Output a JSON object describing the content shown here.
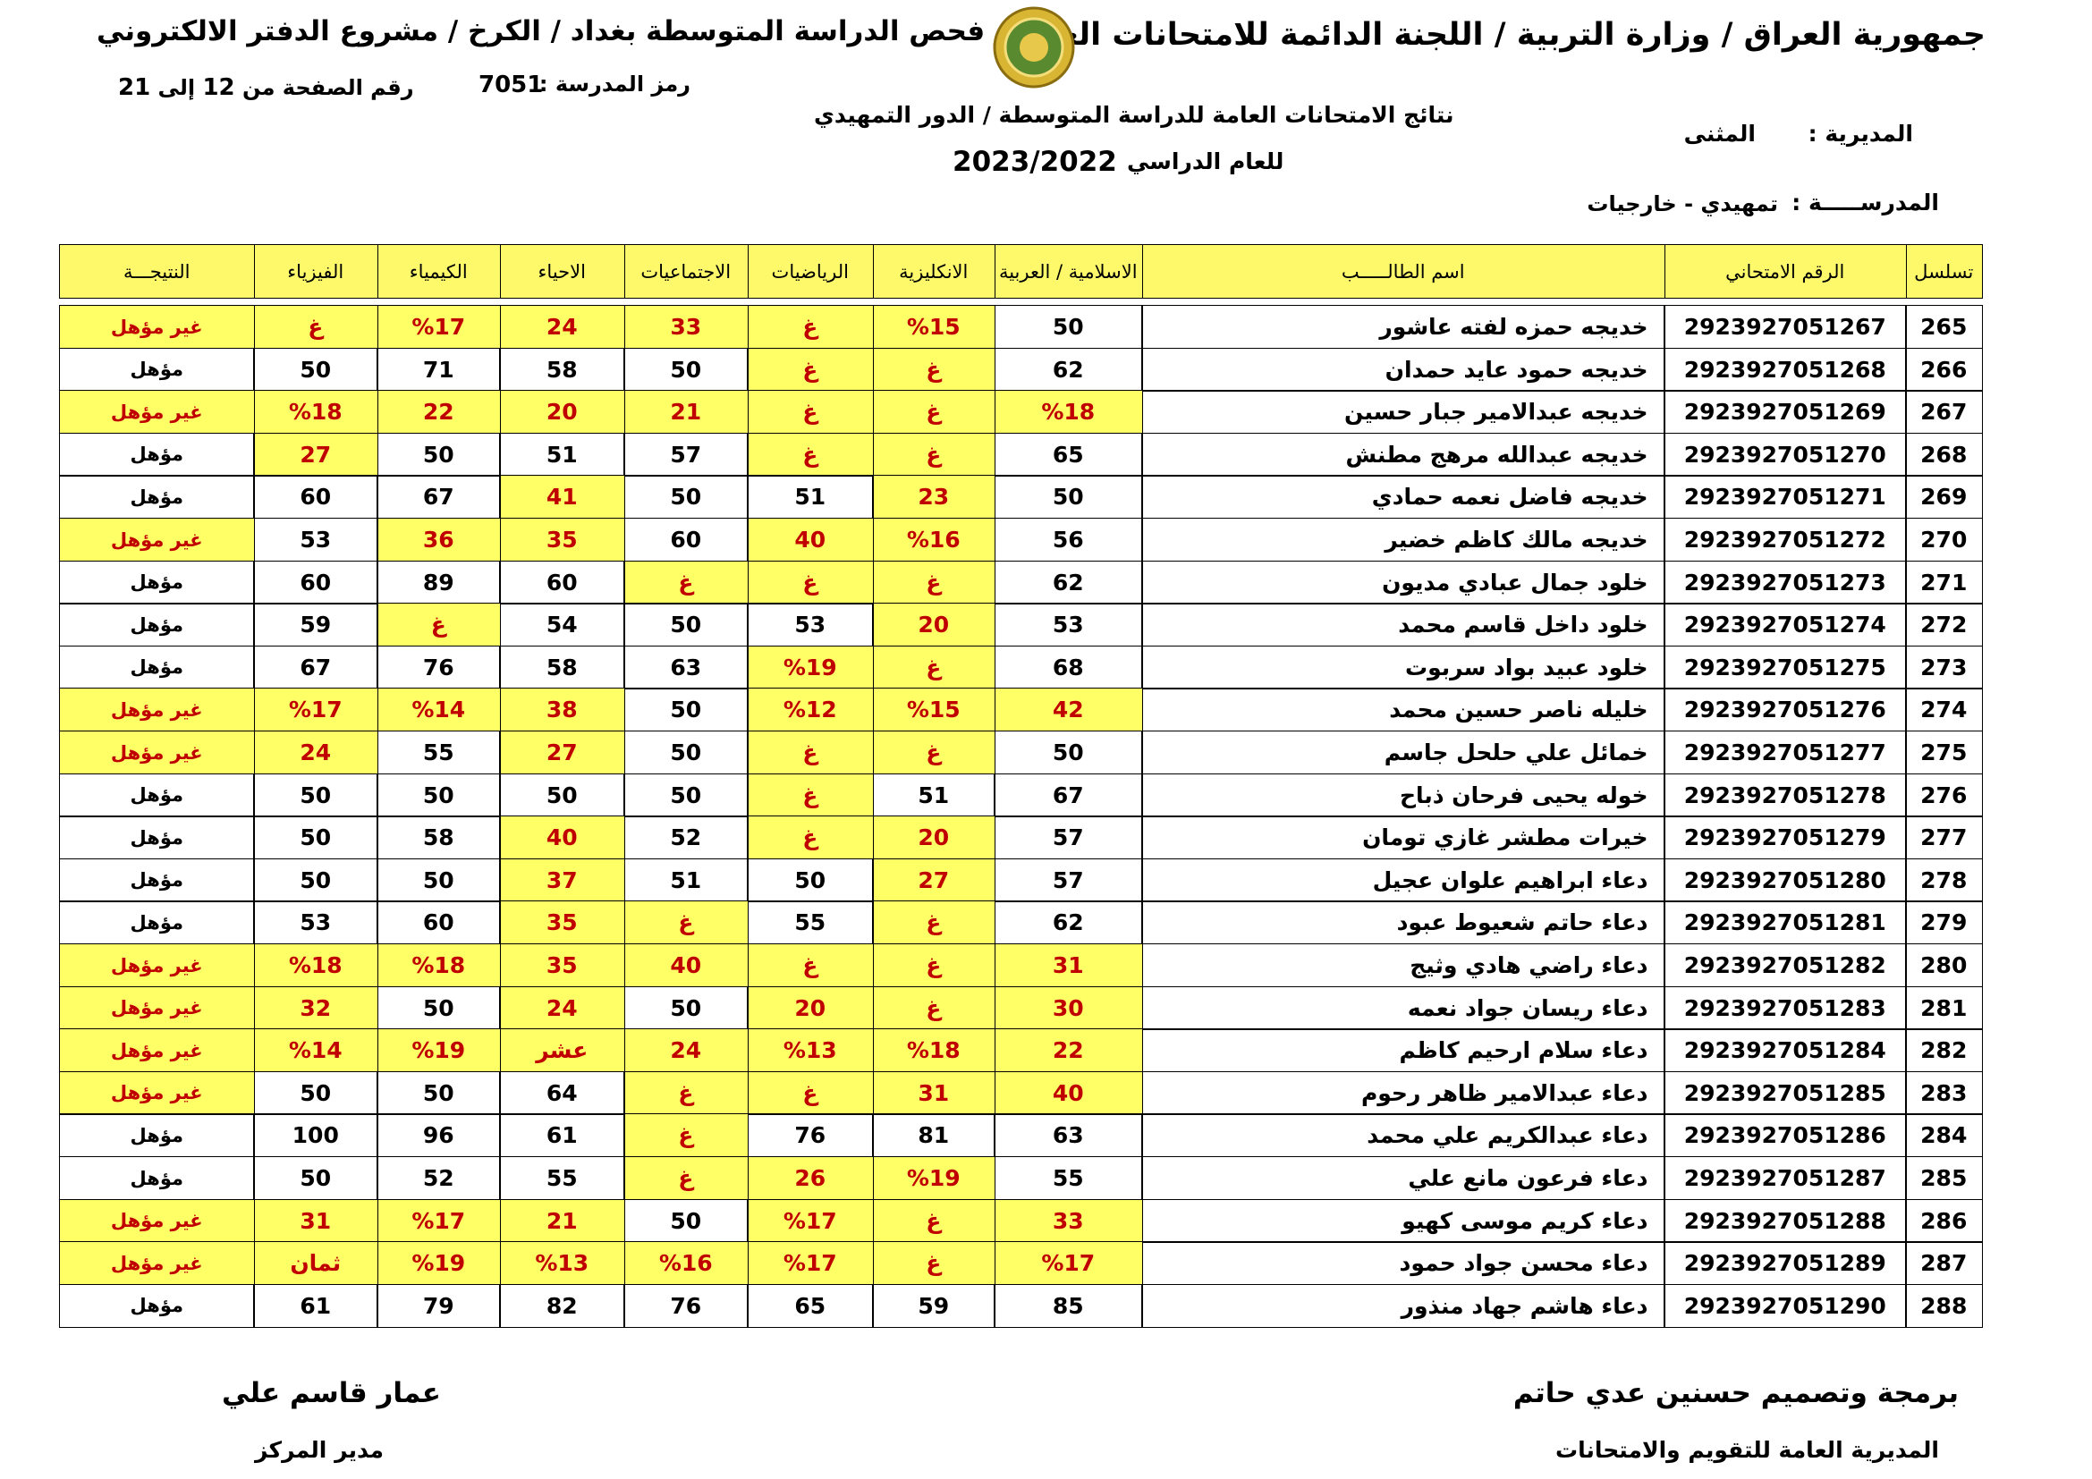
{
  "header": {
    "ministry": "جمهورية العراق / وزارة التربية / اللجنة الدائمة للامتحانات العامة",
    "center": "مركز فحص الدراسة المتوسطة بغداد / الكرخ / مشروع الدفتر الالكتروني",
    "school_code_label": "رمز المدرسة :",
    "school_code": "7051",
    "page_label": "رقم الصفحة من",
    "page_current": "12",
    "page_to": "إلى",
    "page_total": "21",
    "results_title": "نتائج الامتحانات العامة للدراسة المتوسطة / الدور التمهيدي",
    "year_label": "للعام الدراسي",
    "year": "2023/2022",
    "directorate_label": "المديرية :",
    "directorate": "المثنى",
    "school_label": "المدرســـــة :",
    "school": "تمهيدي - خارجيات"
  },
  "table": {
    "columns": [
      "تسلسل",
      "الرقم الامتحاني",
      "اسم الطالـــــب",
      "الاسلامية / العربية",
      "الانكليزية",
      "الرياضيات",
      "الاجتماعيات",
      "الاحياء",
      "الكيمياء",
      "الفيزياء",
      "النتيجـــة"
    ],
    "rows": [
      [
        "265",
        "2923927051267",
        "خديجه حمزه لفته عاشور",
        "50",
        "%15",
        "غ",
        "33",
        "24",
        "%17",
        "غ",
        "غير مؤهل"
      ],
      [
        "266",
        "2923927051268",
        "خديجه حمود عايد حمدان",
        "62",
        "غ",
        "غ",
        "50",
        "58",
        "71",
        "50",
        "مؤهل"
      ],
      [
        "267",
        "2923927051269",
        "خديجه عبدالامير جبار حسين",
        "%18",
        "غ",
        "غ",
        "21",
        "20",
        "22",
        "%18",
        "غير مؤهل"
      ],
      [
        "268",
        "2923927051270",
        "خديجه عبدالله مرهج مطنش",
        "65",
        "غ",
        "غ",
        "57",
        "51",
        "50",
        "27",
        "مؤهل"
      ],
      [
        "269",
        "2923927051271",
        "خديجه فاضل نعمه حمادي",
        "50",
        "23",
        "51",
        "50",
        "41",
        "67",
        "60",
        "مؤهل"
      ],
      [
        "270",
        "2923927051272",
        "خديجه مالك كاظم خضير",
        "56",
        "%16",
        "40",
        "60",
        "35",
        "36",
        "53",
        "غير مؤهل"
      ],
      [
        "271",
        "2923927051273",
        "خلود جمال عبادي مديون",
        "62",
        "غ",
        "غ",
        "غ",
        "60",
        "89",
        "60",
        "مؤهل"
      ],
      [
        "272",
        "2923927051274",
        "خلود داخل قاسم محمد",
        "53",
        "20",
        "53",
        "50",
        "54",
        "غ",
        "59",
        "مؤهل"
      ],
      [
        "273",
        "2923927051275",
        "خلود عبيد بواد سربوت",
        "68",
        "غ",
        "%19",
        "63",
        "58",
        "76",
        "67",
        "مؤهل"
      ],
      [
        "274",
        "2923927051276",
        "خليله ناصر حسين محمد",
        "42",
        "%15",
        "%12",
        "50",
        "38",
        "%14",
        "%17",
        "غير مؤهل"
      ],
      [
        "275",
        "2923927051277",
        "خمائل علي حلحل جاسم",
        "50",
        "غ",
        "غ",
        "50",
        "27",
        "55",
        "24",
        "غير مؤهل"
      ],
      [
        "276",
        "2923927051278",
        "خوله يحيى فرحان ذباح",
        "67",
        "51",
        "غ",
        "50",
        "50",
        "50",
        "50",
        "مؤهل"
      ],
      [
        "277",
        "2923927051279",
        "خيرات مطشر غازي تومان",
        "57",
        "20",
        "غ",
        "52",
        "40",
        "58",
        "50",
        "مؤهل"
      ],
      [
        "278",
        "2923927051280",
        "دعاء ابراهيم علوان عجيل",
        "57",
        "27",
        "50",
        "51",
        "37",
        "50",
        "50",
        "مؤهل"
      ],
      [
        "279",
        "2923927051281",
        "دعاء حاتم شعيوط عبود",
        "62",
        "غ",
        "55",
        "غ",
        "35",
        "60",
        "53",
        "مؤهل"
      ],
      [
        "280",
        "2923927051282",
        "دعاء راضي هادي وثيج",
        "31",
        "غ",
        "غ",
        "40",
        "35",
        "%18",
        "%18",
        "غير مؤهل"
      ],
      [
        "281",
        "2923927051283",
        "دعاء ريسان جواد نعمه",
        "30",
        "غ",
        "20",
        "50",
        "24",
        "50",
        "32",
        "غير مؤهل"
      ],
      [
        "282",
        "2923927051284",
        "دعاء سلام ارحيم كاظم",
        "22",
        "%18",
        "%13",
        "24",
        "عشر",
        "%19",
        "%14",
        "غير مؤهل"
      ],
      [
        "283",
        "2923927051285",
        "دعاء عبدالامير ظاهر رحوم",
        "40",
        "31",
        "غ",
        "غ",
        "64",
        "50",
        "50",
        "غير مؤهل"
      ],
      [
        "284",
        "2923927051286",
        "دعاء عبدالكريم علي محمد",
        "63",
        "81",
        "76",
        "غ",
        "61",
        "96",
        "100",
        "مؤهل"
      ],
      [
        "285",
        "2923927051287",
        "دعاء فرعون مانع علي",
        "55",
        "%19",
        "26",
        "غ",
        "55",
        "52",
        "50",
        "مؤهل"
      ],
      [
        "286",
        "2923927051288",
        "دعاء كريم موسى كهيو",
        "33",
        "غ",
        "%17",
        "50",
        "21",
        "%17",
        "31",
        "غير مؤهل"
      ],
      [
        "287",
        "2923927051289",
        "دعاء محسن جواد حمود",
        "%17",
        "غ",
        "%17",
        "%16",
        "%13",
        "%19",
        "ثمان",
        "غير مؤهل"
      ],
      [
        "288",
        "2923927051290",
        "دعاء هاشم جهاد منذور",
        "85",
        "59",
        "65",
        "76",
        "82",
        "79",
        "61",
        "مؤهل"
      ]
    ]
  },
  "footer": {
    "programming": "برمجة وتصميم حسنين عدي حاتم",
    "directorate": "المديرية العامة للتقويم والامتحانات",
    "manager_name": "عمار قاسم علي",
    "manager_title": "مدير المركز"
  }
}
